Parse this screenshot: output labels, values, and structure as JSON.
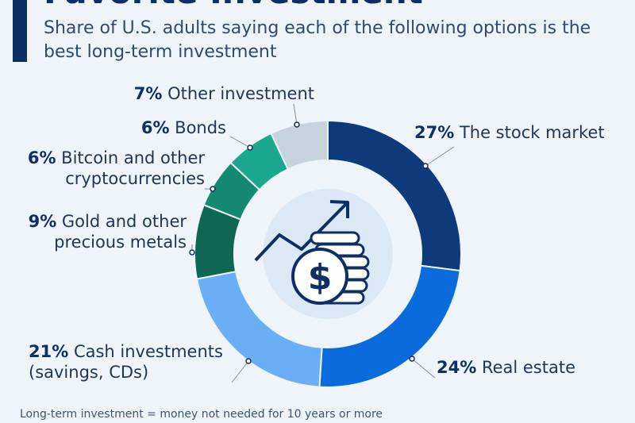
{
  "header": {
    "title": "Favorite Investment",
    "subtitle": "Share of U.S. adults saying each of the following options is the best long-term investment"
  },
  "chart_data": {
    "type": "pie",
    "variant": "donut",
    "start_angle_deg": 0,
    "direction": "clockwise",
    "slices": [
      {
        "value": 27,
        "pct_label": "27%",
        "label_lines": [
          "The stock market"
        ],
        "color": "#0d3a7a"
      },
      {
        "value": 24,
        "pct_label": "24%",
        "label_lines": [
          "Real estate"
        ],
        "color": "#0a6cdc"
      },
      {
        "value": 21,
        "pct_label": "21%",
        "label_lines": [
          "Cash investments",
          "(savings, CDs)"
        ],
        "color": "#6aaef5"
      },
      {
        "value": 9,
        "pct_label": "9%",
        "label_lines": [
          "Gold and other",
          "precious metals"
        ],
        "color": "#0f6652"
      },
      {
        "value": 6,
        "pct_label": "6%",
        "label_lines": [
          "Bitcoin and other",
          "cryptocurrencies"
        ],
        "color": "#138a70"
      },
      {
        "value": 6,
        "pct_label": "6%",
        "label_lines": [
          "Bonds"
        ],
        "color": "#1ba890"
      },
      {
        "value": 7,
        "pct_label": "7%",
        "label_lines": [
          "Other investment"
        ],
        "color": "#c5d3dc"
      }
    ]
  },
  "center_icon": "dollar-coins-growth-icon",
  "footnote": "Long-term investment = money not needed for 10 years or more"
}
